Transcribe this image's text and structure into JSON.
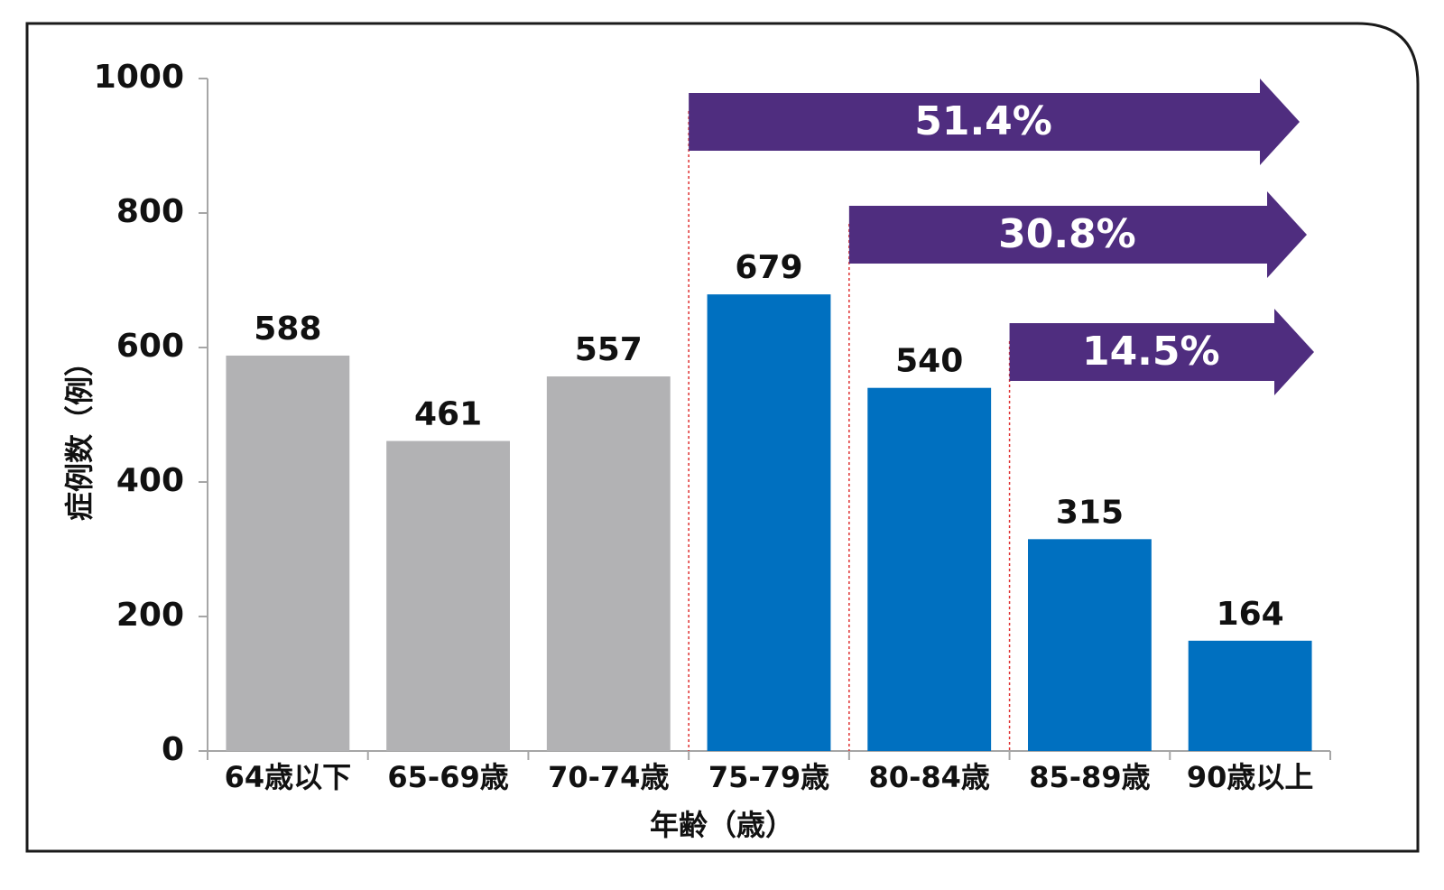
{
  "chart_data": {
    "type": "bar",
    "categories": [
      "64歳以下",
      "65-69歳",
      "70-74歳",
      "75-79歳",
      "80-84歳",
      "85-89歳",
      "90歳以上"
    ],
    "values": [
      588,
      461,
      557,
      679,
      540,
      315,
      164
    ],
    "bar_colors": [
      "#b2b2b4",
      "#b2b2b4",
      "#b2b2b4",
      "#0070c0",
      "#0070c0",
      "#0070c0",
      "#0070c0"
    ],
    "xlabel": "年齢（歳）",
    "ylabel": "症例数（例）",
    "ylim": [
      0,
      1000
    ],
    "yticks": [
      0,
      200,
      400,
      600,
      800,
      1000
    ],
    "grid": false,
    "annotations": [
      {
        "label": "51.4%",
        "from_category": "75-79歳",
        "color": "#4f2d7f"
      },
      {
        "label": "30.8%",
        "from_category": "80-84歳",
        "color": "#4f2d7f"
      },
      {
        "label": "14.5%",
        "from_category": "85-89歳",
        "color": "#4f2d7f"
      }
    ]
  }
}
